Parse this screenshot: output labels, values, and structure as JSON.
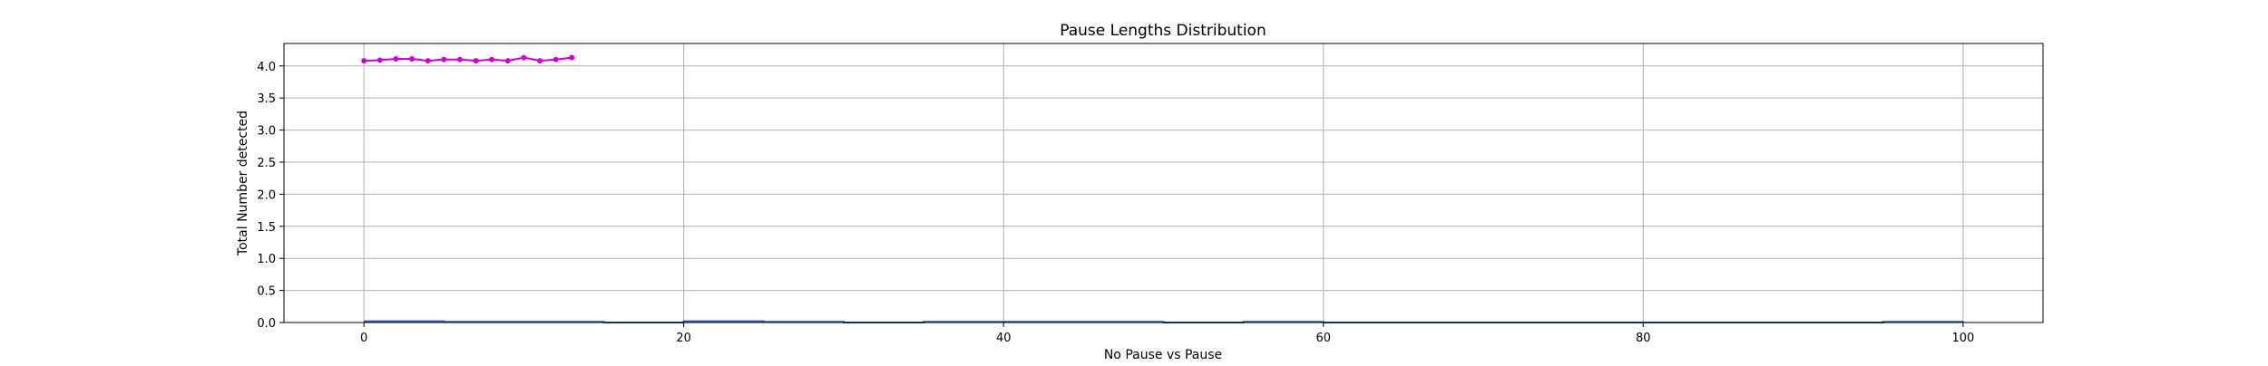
{
  "chart_data": {
    "type": "line",
    "title": "Pause Lengths Distribution",
    "xlabel": "No Pause vs Pause",
    "ylabel": "Total Number detected",
    "xlim": [
      -5,
      105
    ],
    "ylim": [
      0,
      4.35
    ],
    "xticks": [
      0,
      20,
      40,
      60,
      80,
      100
    ],
    "yticks": [
      0.0,
      0.5,
      1.0,
      1.5,
      2.0,
      2.5,
      3.0,
      3.5,
      4.0
    ],
    "xtick_labels": [
      "0",
      "20",
      "40",
      "60",
      "80",
      "100"
    ],
    "ytick_labels": [
      "0.0",
      "0.5",
      "1.0",
      "1.5",
      "2.0",
      "2.5",
      "3.0",
      "3.5",
      "4.0"
    ],
    "grid": true,
    "series": [
      {
        "style": "line-with-markers",
        "color": "#cc00cc",
        "x": [
          0,
          1,
          2,
          3,
          4,
          5,
          6,
          7,
          8,
          9,
          10,
          11,
          12,
          13
        ],
        "y": [
          4.08,
          4.09,
          4.11,
          4.11,
          4.08,
          4.1,
          4.1,
          4.08,
          4.1,
          4.08,
          4.13,
          4.08,
          4.1,
          4.13
        ]
      },
      {
        "style": "step-line",
        "color": "#1f5fa8",
        "x": [
          0,
          5,
          15,
          20,
          25,
          30,
          35,
          50,
          55,
          60,
          95,
          100
        ],
        "y": [
          0.02,
          0.01,
          0.0,
          0.02,
          0.01,
          0.0,
          0.01,
          0.0,
          0.01,
          0.0,
          0.01,
          0.0
        ]
      }
    ]
  }
}
